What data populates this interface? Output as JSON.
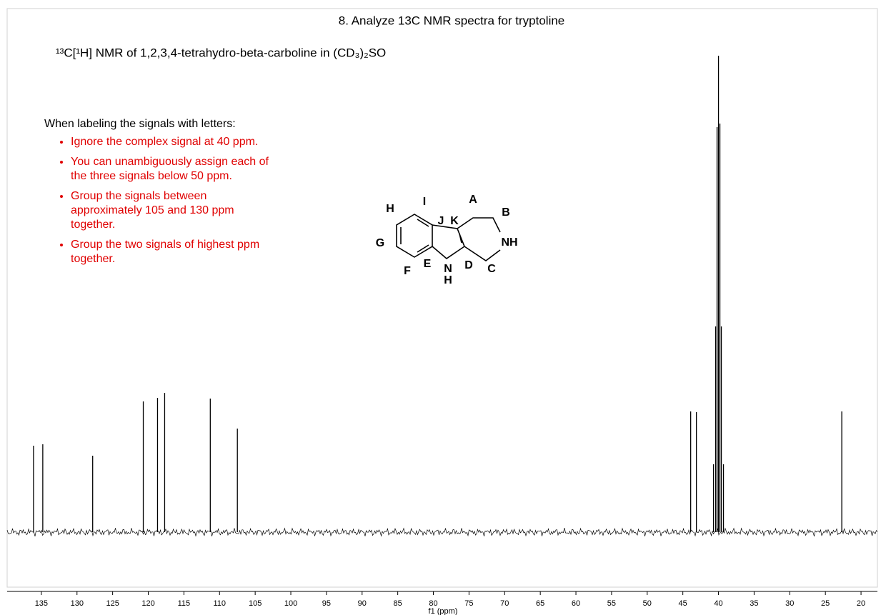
{
  "chart_data": {
    "type": "spectrum",
    "title": "8. Analyze 13C NMR spectra for tryptoline",
    "subtitle": "¹³C[¹H] NMR of 1,2,3,4-tetrahydro-beta-carboline in (CD₃)₂SO",
    "x_label": "f1 (ppm)",
    "xlim": [
      139.8,
      17.7
    ],
    "xticks": [
      135,
      130,
      125,
      120,
      115,
      110,
      105,
      100,
      95,
      90,
      85,
      80,
      75,
      70,
      65,
      60,
      55,
      50,
      45,
      40,
      35,
      30,
      25,
      20
    ],
    "ylim": [
      -77,
      733
    ],
    "color": "#000000",
    "peaks": [
      {
        "ppm": 136.1,
        "intensity": 121
      },
      {
        "ppm": 134.8,
        "intensity": 123
      },
      {
        "ppm": 127.8,
        "intensity": 107
      },
      {
        "ppm": 120.7,
        "intensity": 183
      },
      {
        "ppm": 118.7,
        "intensity": 188
      },
      {
        "ppm": 117.7,
        "intensity": 195
      },
      {
        "ppm": 111.3,
        "intensity": 187
      },
      {
        "ppm": 107.5,
        "intensity": 145
      },
      {
        "ppm": 43.9,
        "intensity": 169
      },
      {
        "ppm": 43.1,
        "intensity": 168
      },
      {
        "ppm": 40.7,
        "intensity": 95
      },
      {
        "ppm": 40.4,
        "intensity": 288
      },
      {
        "ppm": 40.2,
        "intensity": 567
      },
      {
        "ppm": 40.0,
        "intensity": 667
      },
      {
        "ppm": 39.8,
        "intensity": 572
      },
      {
        "ppm": 39.6,
        "intensity": 288
      },
      {
        "ppm": 39.3,
        "intensity": 95
      },
      {
        "ppm": 22.7,
        "intensity": 169
      }
    ]
  },
  "notes": {
    "heading": "When labeling the signals with letters:",
    "items": [
      "Ignore the complex signal at 40 ppm.",
      "You can unambiguously assign each of the three signals below 50 ppm.",
      "Group the signals between approximately 105 and 130 ppm together.",
      "Group the two signals of highest ppm together."
    ]
  },
  "structure": {
    "labels": [
      "H",
      "I",
      "A",
      "B",
      "J",
      "K",
      "G",
      "NH",
      "F",
      "E",
      "N",
      "D",
      "C",
      "H"
    ]
  }
}
